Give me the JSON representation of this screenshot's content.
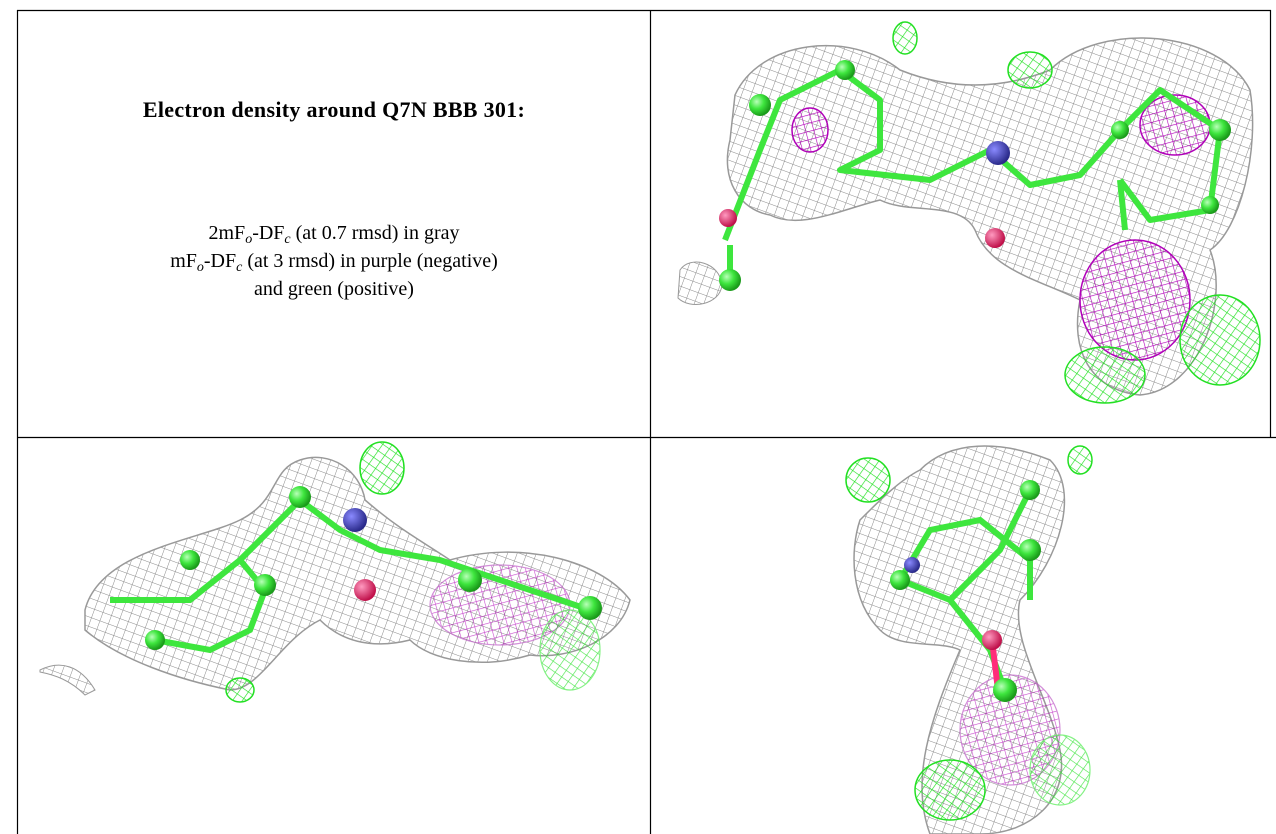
{
  "table": {
    "rows": [
      [
        {
          "title": "Electron density around Q7N BBB 301:",
          "lines": [
            [
              "2mF",
              "o",
              "-DF",
              "c",
              " (at 0.7 rmsd) in gray"
            ],
            [
              "mF",
              "o",
              "-DF",
              "c",
              " (at 3 rmsd) in purple (negative)"
            ],
            [
              "and green (positive)"
            ]
          ]
        }
      ]
    ]
  }
}
